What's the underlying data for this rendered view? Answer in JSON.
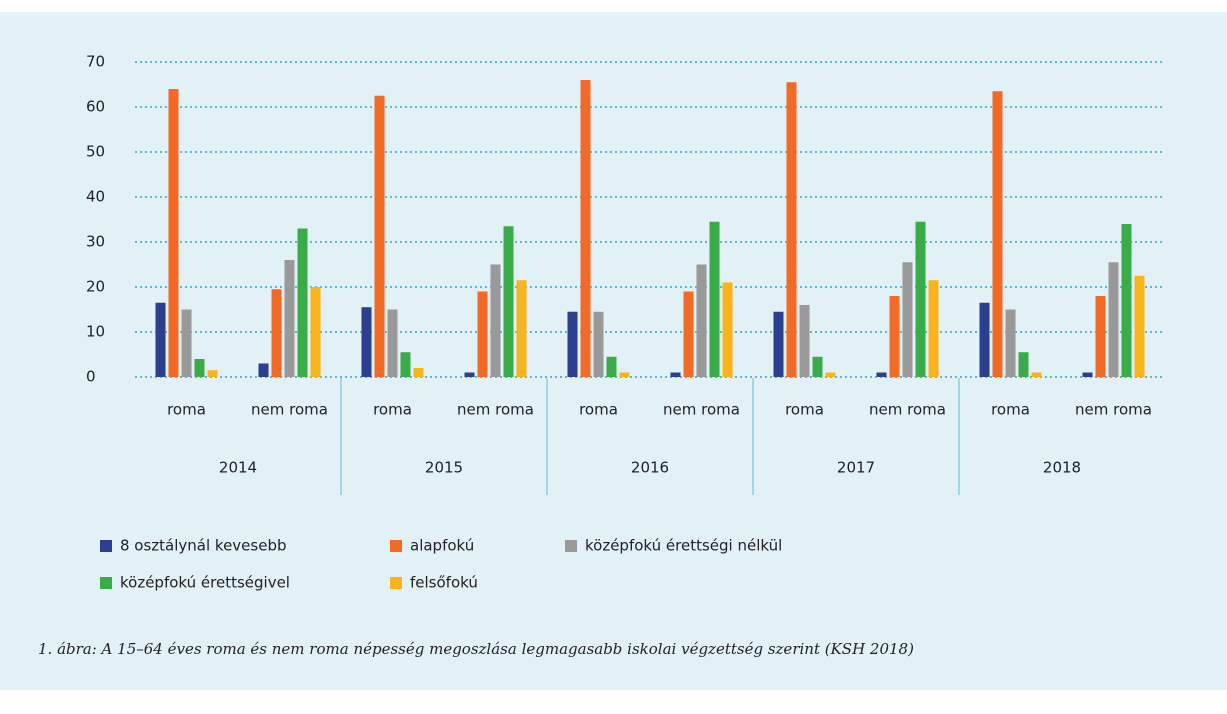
{
  "chart_data": {
    "type": "bar",
    "categories": [
      "roma",
      "nem roma",
      "roma",
      "nem roma",
      "roma",
      "nem roma",
      "roma",
      "nem roma",
      "roma",
      "nem roma"
    ],
    "category_groups": [
      "2014",
      "2015",
      "2016",
      "2017",
      "2018"
    ],
    "series": [
      {
        "name": "8 osztálynál kevesebb",
        "color": "#2b3f8f",
        "values": [
          16.5,
          3,
          15.5,
          1,
          14.5,
          1,
          14.5,
          1,
          16.5,
          1
        ]
      },
      {
        "name": "alapfokú",
        "color": "#f26a25",
        "values": [
          64,
          19.5,
          62.5,
          19,
          66,
          19,
          65.5,
          18,
          63.5,
          18
        ]
      },
      {
        "name": "középfokú érettségi nélkül",
        "color": "#999999",
        "values": [
          15,
          26,
          15,
          25,
          14.5,
          25,
          16,
          25.5,
          15,
          25.5
        ]
      },
      {
        "name": "középfokú érettségivel",
        "color": "#3aab49",
        "values": [
          4,
          33,
          5.5,
          33.5,
          4.5,
          34.5,
          4.5,
          34.5,
          5.5,
          34
        ]
      },
      {
        "name": "felsőfokú",
        "color": "#f9b31b",
        "values": [
          1.5,
          20,
          2,
          21.5,
          1,
          21,
          1,
          21.5,
          1,
          22.5
        ]
      }
    ],
    "ylim": [
      0,
      70
    ],
    "yticks": [
      0,
      10,
      20,
      30,
      40,
      50,
      60,
      70
    ],
    "grid": true,
    "caption": "1. ábra: A 15–64 éves roma és nem roma népesség megoszlása legmagasabb iskolai végzettség szerint (KSH 2018)"
  }
}
